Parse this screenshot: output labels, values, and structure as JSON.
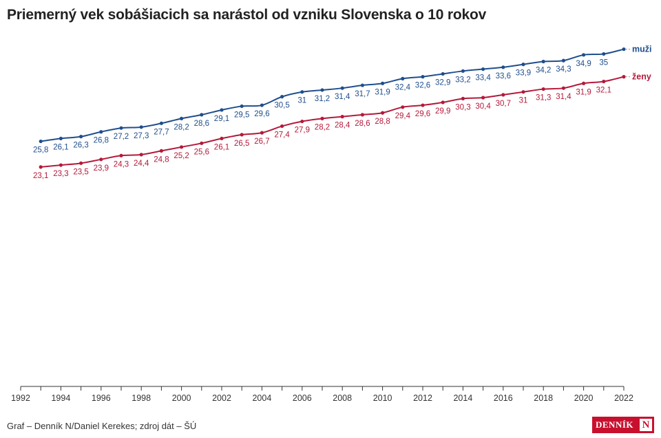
{
  "title": "Priemerný vek sobášiacich sa narástol od vzniku Slovenska o 10 rokov",
  "footer": {
    "credit": "Graf – Denník N/Daniel Kerekes; zdroj dát – ŠÚ",
    "logo_text": "DENNÍK",
    "logo_mark": "N"
  },
  "chart_data": {
    "type": "line",
    "x": [
      1993,
      1994,
      1995,
      1996,
      1997,
      1998,
      1999,
      2000,
      2001,
      2002,
      2003,
      2004,
      2005,
      2006,
      2007,
      2008,
      2009,
      2010,
      2011,
      2012,
      2013,
      2014,
      2015,
      2016,
      2017,
      2018,
      2019,
      2020,
      2021,
      2022
    ],
    "xlim": [
      1992,
      2022
    ],
    "ylim": [
      0,
      38
    ],
    "x_ticks": [
      1992,
      1994,
      1996,
      1998,
      2000,
      2002,
      2004,
      2006,
      2008,
      2010,
      2012,
      2014,
      2016,
      2018,
      2020,
      2022
    ],
    "grid": false,
    "series": [
      {
        "name": "muži",
        "color": "#1f4e8c",
        "values": [
          25.8,
          26.1,
          26.3,
          26.8,
          27.2,
          27.3,
          27.7,
          28.2,
          28.6,
          29.1,
          29.5,
          29.6,
          30.5,
          31,
          31.2,
          31.4,
          31.7,
          31.9,
          32.4,
          32.6,
          32.9,
          33.2,
          33.4,
          33.6,
          33.9,
          34.2,
          34.3,
          34.9,
          35,
          35.5
        ],
        "labels": [
          "25,8",
          "26,1",
          "26,3",
          "26,8",
          "27,2",
          "27,3",
          "27,7",
          "28,2",
          "28,6",
          "29,1",
          "29,5",
          "29,6",
          "30,5",
          "31",
          "31,2",
          "31,4",
          "31,7",
          "31,9",
          "32,4",
          "32,6",
          "32,9",
          "33,2",
          "33,4",
          "33,6",
          "33,9",
          "34,2",
          "34,3",
          "34,9",
          "35",
          ""
        ]
      },
      {
        "name": "ženy",
        "color": "#b5193a",
        "values": [
          23.1,
          23.3,
          23.5,
          23.9,
          24.3,
          24.4,
          24.8,
          25.2,
          25.6,
          26.1,
          26.5,
          26.7,
          27.4,
          27.9,
          28.2,
          28.4,
          28.6,
          28.8,
          29.4,
          29.6,
          29.9,
          30.3,
          30.4,
          30.7,
          31,
          31.3,
          31.4,
          31.9,
          32.1,
          32.6
        ],
        "labels": [
          "23,1",
          "23,3",
          "23,5",
          "23,9",
          "24,3",
          "24,4",
          "24,8",
          "25,2",
          "25,6",
          "26,1",
          "26,5",
          "26,7",
          "27,4",
          "27,9",
          "28,2",
          "28,4",
          "28,6",
          "28,8",
          "29,4",
          "29,6",
          "29,9",
          "30,3",
          "30,4",
          "30,7",
          "31",
          "31,3",
          "31,4",
          "31,9",
          "32,1",
          ""
        ]
      }
    ]
  }
}
